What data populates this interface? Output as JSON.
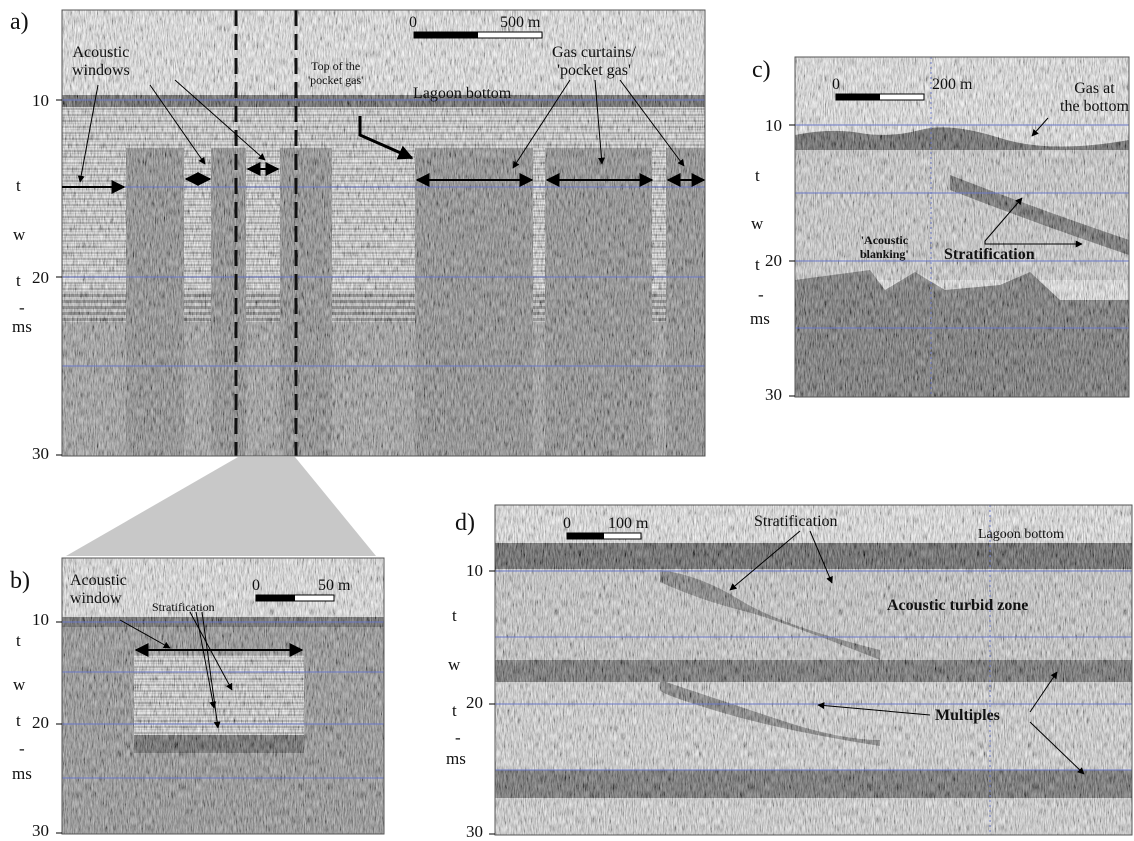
{
  "figure": {
    "panel_a": {
      "letter": "a)",
      "depth_ticks": [
        "10",
        "20",
        "30"
      ],
      "axis_letters": [
        "t",
        "w",
        "t",
        "-",
        "ms"
      ],
      "scale": {
        "start": "0",
        "end": "500 m"
      },
      "labels": {
        "acoustic_windows": "Acoustic\nwindows",
        "top_pocket_gas": "Top of the\n'pocket gas'",
        "lagoon_bottom": "Lagoon bottom",
        "gas_curtains": "Gas curtains/\n'pocket gas'"
      }
    },
    "panel_b": {
      "letter": "b)",
      "depth_ticks": [
        "10",
        "20",
        "30"
      ],
      "axis_letters": [
        "t",
        "w",
        "t",
        "-",
        "ms"
      ],
      "scale": {
        "start": "0",
        "end": "50 m"
      },
      "labels": {
        "acoustic_window": "Acoustic\nwindow",
        "stratification": "Stratification"
      }
    },
    "panel_c": {
      "letter": "c)",
      "depth_ticks": [
        "10",
        "20",
        "30"
      ],
      "axis_letters": [
        "t",
        "w",
        "t",
        "-",
        "ms"
      ],
      "scale": {
        "start": "0",
        "end": "200 m"
      },
      "labels": {
        "gas_bottom": "Gas at\nthe bottom",
        "acoustic_blanking": "'Acoustic\nblanking'",
        "stratification": "Stratification"
      }
    },
    "panel_d": {
      "letter": "d)",
      "depth_ticks": [
        "10",
        "20",
        "30"
      ],
      "axis_letters": [
        "t",
        "w",
        "t",
        "-",
        "ms"
      ],
      "scale": {
        "start": "0",
        "end": "100 m"
      },
      "labels": {
        "stratification": "Stratification",
        "lagoon_bottom": "Lagoon bottom",
        "turbid_zone": "Acoustic turbid zone",
        "multiples": "Multiples"
      }
    }
  },
  "colors": {
    "seismic_light": "#d8d8d8",
    "seismic_mid": "#8a8a8a",
    "seismic_dark": "#2a2a2a",
    "grid_blue": "#6a78c8",
    "connector_gray": "#c8c8c8"
  }
}
